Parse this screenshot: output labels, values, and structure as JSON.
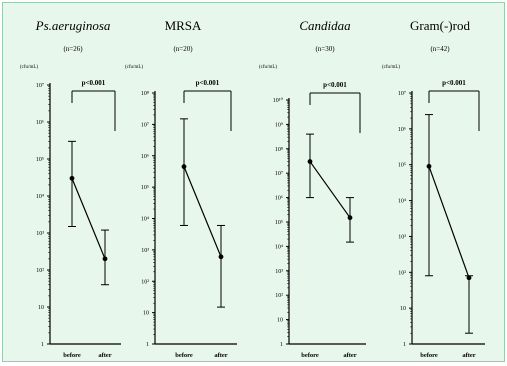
{
  "chart_data": [
    {
      "type": "line",
      "title": "Ps.aeruginosa",
      "title_italic": true,
      "n": "(n=26)",
      "unit": "(cfu/mL)",
      "y_scale": "log",
      "ylim": [
        1,
        10000000
      ],
      "y_ticks": [
        1,
        10,
        100,
        1000,
        10000,
        100000,
        1000000,
        10000000
      ],
      "y_tick_labels": [
        "1",
        "10",
        "10²",
        "10³",
        "10⁴",
        "10⁵",
        "10⁶",
        "10⁷"
      ],
      "categories": [
        "before",
        "after"
      ],
      "points": [
        {
          "x": "before",
          "y": 30000,
          "low": 1500,
          "high": 300000
        },
        {
          "x": "after",
          "y": 200,
          "low": 40,
          "high": 1200
        }
      ],
      "significance": "p<0.001"
    },
    {
      "type": "line",
      "title": "MRSA",
      "title_italic": false,
      "n": "(n=20)",
      "unit": "(cfu/mL)",
      "y_scale": "log",
      "ylim": [
        1,
        100000000
      ],
      "y_ticks": [
        1,
        10,
        100,
        1000,
        10000,
        100000,
        1000000,
        10000000,
        100000000
      ],
      "y_tick_labels": [
        "1",
        "10",
        "10²",
        "10³",
        "10⁴",
        "10⁵",
        "10⁶",
        "10⁷",
        "10⁸"
      ],
      "categories": [
        "before",
        "after"
      ],
      "points": [
        {
          "x": "before",
          "y": 450000,
          "low": 6000,
          "high": 15000000
        },
        {
          "x": "after",
          "y": 600,
          "low": 15,
          "high": 6000
        }
      ],
      "significance": "p<0.001"
    },
    {
      "type": "line",
      "title": "Candidaa",
      "title_italic": true,
      "n": "(n=30)",
      "unit": "(cfu/mL)",
      "y_scale": "log",
      "ylim": [
        1,
        10000000000
      ],
      "y_ticks": [
        1,
        10,
        100,
        1000,
        10000,
        100000,
        1000000,
        10000000,
        100000000,
        1000000000,
        10000000000
      ],
      "y_tick_labels": [
        "1",
        "10",
        "10²",
        "10³",
        "10⁴",
        "10⁵",
        "10⁶",
        "10⁷",
        "10⁸",
        "10⁹",
        "10¹⁰"
      ],
      "categories": [
        "before",
        "after"
      ],
      "points": [
        {
          "x": "before",
          "y": 30000000,
          "low": 1000000,
          "high": 400000000
        },
        {
          "x": "after",
          "y": 150000,
          "low": 15000,
          "high": 1000000
        }
      ],
      "significance": "p<0.001"
    },
    {
      "type": "line",
      "title": "Gram(-)rod",
      "title_italic": false,
      "n": "(n=42)",
      "unit": "(cfu/mL)",
      "y_scale": "log",
      "ylim": [
        1,
        10000000
      ],
      "y_ticks": [
        1,
        10,
        100,
        1000,
        10000,
        100000,
        1000000,
        10000000
      ],
      "y_tick_labels": [
        "1",
        "10",
        "10²",
        "10³",
        "10⁴",
        "10⁵",
        "10⁶",
        "10⁷"
      ],
      "categories": [
        "before",
        "after"
      ],
      "points": [
        {
          "x": "before",
          "y": 90000,
          "low": 80,
          "high": 2500000
        },
        {
          "x": "after",
          "y": 70,
          "low": 2,
          "high": 80
        }
      ],
      "significance": "p<0.001"
    }
  ]
}
